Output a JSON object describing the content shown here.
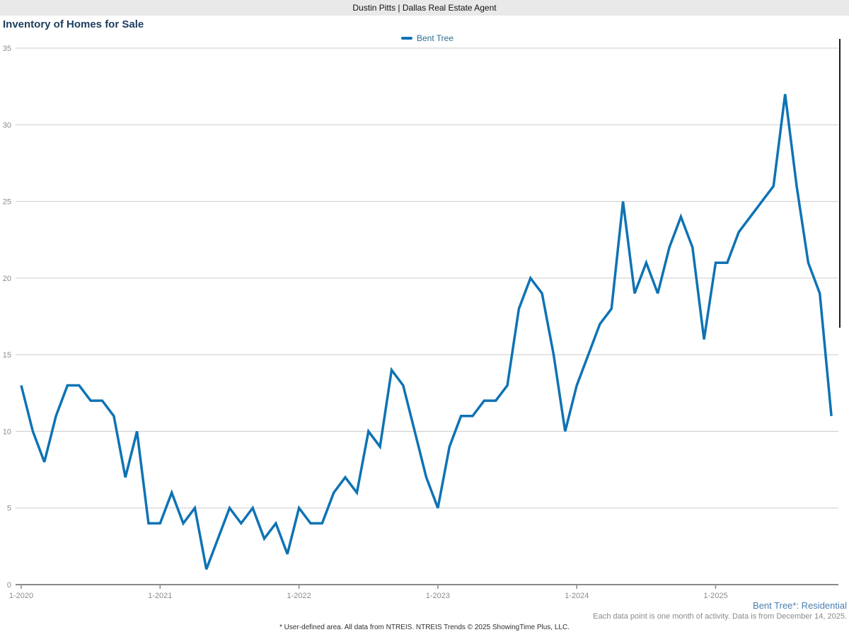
{
  "header": {
    "title": "Dustin Pitts | Dallas Real Estate Agent"
  },
  "chart": {
    "title": "Inventory of Homes for Sale",
    "legend_label": "Bent Tree",
    "colors": {
      "line": "#0e73b4",
      "title_text": "#1c3d5e",
      "legend_text": "#2e6e92",
      "grid": "#cccccc",
      "axis_text": "#8c8c8c",
      "axis_line": "#8a8a8a",
      "header_bg": "#e9e9e9",
      "footer_blue": "#4a7eb0",
      "scrollbar": "#1c1c1c"
    }
  },
  "chart_data": {
    "type": "line",
    "title": "Inventory of Homes for Sale",
    "x_start": "1-2020",
    "x_frequency": "monthly",
    "x_tick_labels": [
      "1-2020",
      "1-2021",
      "1-2022",
      "1-2023",
      "1-2024",
      "1-2025"
    ],
    "months_per_tick": 12,
    "yticks": [
      0,
      5,
      10,
      15,
      20,
      25,
      30,
      35
    ],
    "ylim": [
      0,
      35
    ],
    "grid": "horizontal",
    "legend_position": "top-center",
    "series": [
      {
        "name": "Bent Tree",
        "color": "#0e73b4",
        "values": [
          13,
          10,
          8,
          11,
          13,
          13,
          12,
          12,
          11,
          7,
          10,
          4,
          4,
          6,
          4,
          5,
          1,
          3,
          5,
          4,
          5,
          3,
          4,
          2,
          5,
          4,
          4,
          6,
          7,
          6,
          10,
          9,
          14,
          13,
          10,
          7,
          5,
          9,
          11,
          11,
          12,
          12,
          13,
          18,
          20,
          19,
          15,
          10,
          13,
          15,
          17,
          18,
          25,
          19,
          21,
          19,
          22,
          24,
          22,
          16,
          21,
          21,
          23,
          24,
          25,
          26,
          32,
          26,
          21,
          19,
          11
        ]
      }
    ]
  },
  "footer": {
    "series_note": "Bent Tree*: Residential",
    "data_note": "Each data point is one month of activity. Data is from December 14, 2025.",
    "disclaimer": "* User-defined area. All data from NTREIS. NTREIS Trends © 2025 ShowingTime Plus, LLC."
  }
}
